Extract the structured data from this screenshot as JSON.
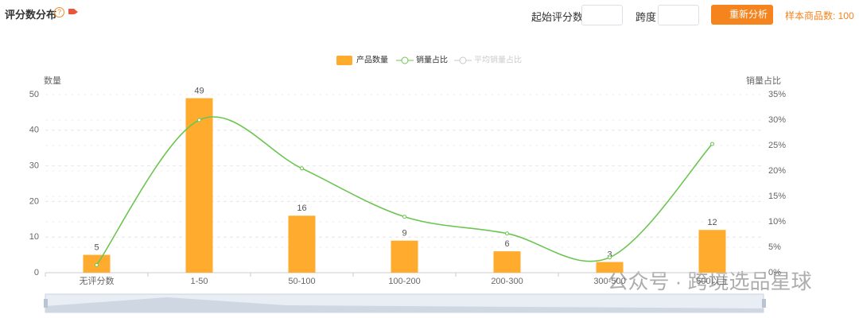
{
  "header": {
    "title": "评分数分布",
    "start_label": "起始评分数",
    "span_label": "跨度",
    "button": "重新分析",
    "sample": "样本商品数: 100"
  },
  "watermark": "公众号 · 跨境选品星球",
  "chart_data": {
    "type": "bar",
    "categories": [
      "无评分数",
      "1-50",
      "50-100",
      "100-200",
      "200-300",
      "300-500",
      "500以上"
    ],
    "series": [
      {
        "name": "产品数量",
        "color": "#ffab2e",
        "type": "bar",
        "values": [
          5,
          49,
          16,
          9,
          6,
          3,
          12
        ]
      },
      {
        "name": "销量占比",
        "color": "#6cc551",
        "type": "line",
        "axis": "y2",
        "values": [
          1.5,
          30,
          20.5,
          11,
          7.7,
          3,
          25.3
        ]
      }
    ],
    "hidden_series": [
      {
        "name": "平均销量占比",
        "color": "#c8c8c8"
      }
    ],
    "ylabel": "数量",
    "y2label": "销量占比",
    "ylim": [
      0,
      50
    ],
    "yticks": [
      0,
      10,
      20,
      30,
      40,
      50
    ],
    "y2lim": [
      0,
      35
    ],
    "y2ticks": [
      {
        "value": 0,
        "label": "0%"
      },
      {
        "value": 5,
        "label": "5%"
      },
      {
        "value": 10,
        "label": "10%"
      },
      {
        "value": 15,
        "label": "15%"
      },
      {
        "value": 20,
        "label": "20%"
      },
      {
        "value": 25,
        "label": "25%"
      },
      {
        "value": 30,
        "label": "30%"
      },
      {
        "value": 35,
        "label": "35%"
      }
    ],
    "grid": true
  }
}
